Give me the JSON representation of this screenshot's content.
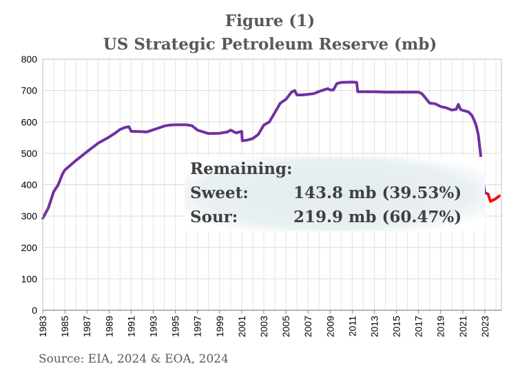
{
  "chart_data": {
    "type": "line",
    "title": "Figure (1)",
    "subtitle": "US Strategic Petroleum Reserve (mb)",
    "xlabel": "",
    "ylabel": "",
    "xlim": [
      1983,
      2024.5
    ],
    "ylim": [
      0,
      800
    ],
    "y_ticks": [
      "0",
      "100",
      "200",
      "300",
      "400",
      "500",
      "600",
      "700",
      "800"
    ],
    "x_ticks": [
      "1983",
      "1985",
      "1987",
      "1989",
      "1991",
      "1993",
      "1995",
      "1997",
      "1999",
      "2001",
      "2003",
      "2005",
      "2007",
      "2009",
      "2011",
      "2013",
      "2015",
      "2017",
      "2019",
      "2021",
      "2023"
    ],
    "grid": true,
    "legend": "none",
    "series": [
      {
        "color": "#7030A0",
        "x": [
          1983.0,
          1983.5,
          1984.0,
          1984.4,
          1984.8,
          1985.0,
          1986.0,
          1987.0,
          1988.0,
          1989.0,
          1989.5,
          1990.0,
          1990.4,
          1990.8,
          1991.0,
          1992.0,
          1992.4,
          1993.0,
          1993.6,
          1994.0,
          1994.5,
          1995.0,
          1996.0,
          1996.5,
          1997.0,
          1998.0,
          1999.0,
          1999.7,
          2000.0,
          2000.5,
          2001.0,
          2001.05,
          2001.5,
          2002.0,
          2002.5,
          2003.0,
          2003.5,
          2004.0,
          2004.5,
          2005.0,
          2005.5,
          2005.8,
          2006.0,
          2006.5,
          2007.0,
          2007.5,
          2008.0,
          2008.5,
          2008.8,
          2009.0,
          2009.3,
          2009.6,
          2010.0,
          2011.0,
          2011.4,
          2011.5,
          2012.0,
          2012.5,
          2013.0,
          2014.0,
          2015.0,
          2016.0,
          2017.0,
          2017.3,
          2017.7,
          2018.0,
          2018.5,
          2019.0,
          2019.5,
          2020.0,
          2020.4,
          2020.6,
          2020.8,
          2021.0,
          2021.5,
          2021.8,
          2022.0,
          2022.2,
          2022.4,
          2022.6,
          2022.8,
          2023.0,
          2023.3
        ],
        "values": [
          293,
          325,
          378,
          400,
          435,
          447,
          477,
          505,
          532,
          552,
          563,
          576,
          582,
          585,
          570,
          569,
          568,
          575,
          582,
          587,
          590,
          591,
          591,
          588,
          574,
          563,
          564,
          568,
          574,
          565,
          570,
          540,
          542,
          547,
          560,
          590,
          600,
          630,
          660,
          672,
          695,
          700,
          686,
          686,
          688,
          690,
          697,
          703,
          706,
          702,
          702,
          722,
          726,
          727,
          726,
          696,
          696,
          696,
          696,
          695,
          695,
          695,
          695,
          690,
          673,
          660,
          658,
          649,
          645,
          638,
          640,
          656,
          640,
          637,
          632,
          622,
          608,
          590,
          560,
          500,
          420,
          375,
          370
        ]
      },
      {
        "color": "#FF0000",
        "x": [
          2023.3,
          2023.5,
          2023.8,
          2024.0,
          2024.3
        ],
        "values": [
          370,
          347,
          352,
          356,
          364
        ]
      }
    ],
    "annotation": {
      "heading": "Remaining:",
      "rows": [
        {
          "label": "Sweet:",
          "value": "143.8 mb (39.53%)"
        },
        {
          "label": "Sour:",
          "value": "219.9 mb (60.47%)"
        }
      ]
    },
    "source": "Source: EIA, 2024 & EOA, 2024"
  }
}
